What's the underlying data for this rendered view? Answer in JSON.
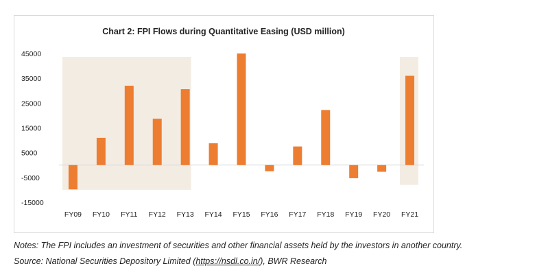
{
  "chart_data": {
    "type": "bar",
    "title": "Chart 2: FPI Flows during Quantitative Easing (USD million)",
    "xlabel": "",
    "ylabel": "",
    "categories": [
      "FY09",
      "FY10",
      "FY11",
      "FY12",
      "FY13",
      "FY14",
      "FY15",
      "FY16",
      "FY17",
      "FY18",
      "FY19",
      "FY20",
      "FY21"
    ],
    "values": [
      -9800,
      11000,
      32000,
      18700,
      30600,
      8800,
      45000,
      -2500,
      7500,
      22200,
      -5300,
      -2700,
      36000
    ],
    "ylim": [
      -15000,
      45000
    ],
    "yticks": [
      45000,
      35000,
      25000,
      15000,
      5000,
      -5000,
      -15000
    ],
    "ytick_labels": [
      "45000",
      "35000",
      "25000",
      "15000",
      "5000",
      "-5000",
      "-15000"
    ],
    "grid": false,
    "legend": "none",
    "bar_color": "#ed7d31",
    "highlight_color": "#f3ece2",
    "highlight_ranges": [
      [
        "FY09",
        "FY13"
      ],
      [
        "FY21",
        "FY21"
      ]
    ]
  },
  "notes": {
    "line1": "Notes: The FPI includes an investment of securities and other financial assets held by the investors in another country.",
    "source_prefix": "Source: National Securities Depository Limited (",
    "source_link": "https://nsdl.co.in/",
    "source_suffix": "), BWR Research"
  }
}
